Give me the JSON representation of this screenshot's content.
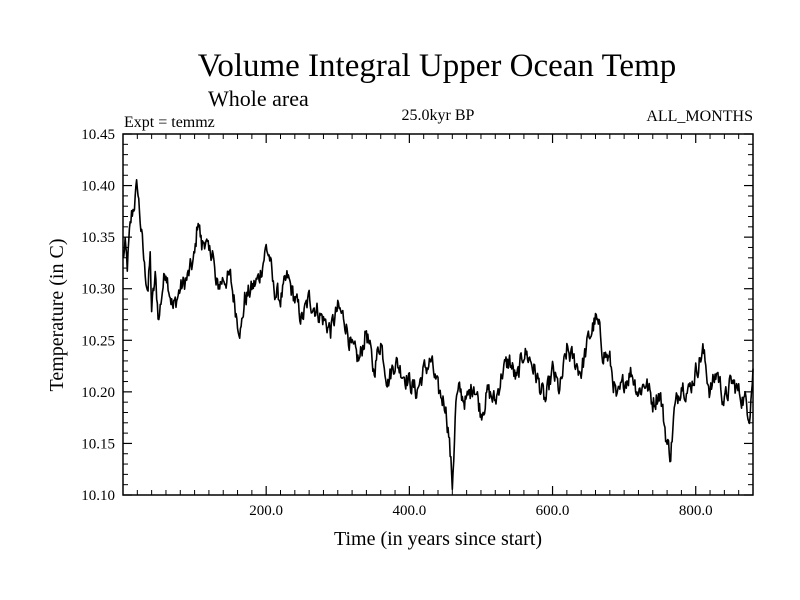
{
  "chart_data": {
    "type": "line",
    "title": "Volume Integral Upper Ocean Temp",
    "subtitle": "Whole area",
    "experiment_label": "Expt = temmz",
    "period_label": "25.0kyr BP",
    "months_label": "ALL_MONTHS",
    "xlabel": "Time (in years since start)",
    "ylabel": "Temperature (in C)",
    "xlim": [
      0,
      880
    ],
    "ylim": [
      10.1,
      10.45
    ],
    "x_ticks": [
      200,
      400,
      600,
      800
    ],
    "x_tick_labels": [
      "200.0",
      "400.0",
      "600.0",
      "800.0"
    ],
    "y_ticks": [
      10.1,
      10.15,
      10.2,
      10.25,
      10.3,
      10.35,
      10.4,
      10.45
    ],
    "y_tick_labels": [
      "10.10",
      "10.15",
      "10.20",
      "10.25",
      "10.30",
      "10.35",
      "10.40",
      "10.45"
    ],
    "grid": false,
    "series": [
      {
        "name": "temmz",
        "anchors": {
          "x": [
            0,
            3,
            6,
            9,
            12,
            15,
            20,
            25,
            30,
            35,
            38,
            40,
            45,
            50,
            55,
            60,
            70,
            80,
            90,
            100,
            105,
            110,
            115,
            120,
            125,
            130,
            140,
            150,
            160,
            165,
            170,
            180,
            190,
            200,
            205,
            210,
            220,
            230,
            240,
            250,
            260,
            270,
            280,
            290,
            300,
            310,
            320,
            330,
            340,
            350,
            360,
            370,
            380,
            390,
            400,
            410,
            420,
            430,
            440,
            450,
            455,
            460,
            462,
            465,
            470,
            480,
            490,
            500,
            510,
            520,
            530,
            540,
            550,
            560,
            570,
            580,
            590,
            600,
            610,
            620,
            630,
            640,
            650,
            660,
            665,
            670,
            680,
            690,
            700,
            710,
            720,
            730,
            740,
            750,
            760,
            765,
            770,
            780,
            790,
            800,
            810,
            820,
            830,
            840,
            850,
            860,
            870,
            875,
            880
          ],
          "y": [
            10.33,
            10.34,
            10.32,
            10.35,
            10.37,
            10.38,
            10.4,
            10.36,
            10.32,
            10.3,
            10.33,
            10.28,
            10.31,
            10.27,
            10.3,
            10.32,
            10.28,
            10.3,
            10.31,
            10.33,
            10.37,
            10.34,
            10.35,
            10.33,
            10.34,
            10.3,
            10.31,
            10.31,
            10.27,
            10.26,
            10.29,
            10.3,
            10.31,
            10.34,
            10.33,
            10.3,
            10.29,
            10.31,
            10.29,
            10.27,
            10.29,
            10.28,
            10.27,
            10.26,
            10.28,
            10.27,
            10.24,
            10.23,
            10.26,
            10.22,
            10.25,
            10.21,
            10.23,
            10.22,
            10.21,
            10.2,
            10.22,
            10.23,
            10.2,
            10.19,
            10.16,
            10.11,
            10.14,
            10.19,
            10.2,
            10.19,
            10.21,
            10.18,
            10.2,
            10.19,
            10.22,
            10.23,
            10.21,
            10.24,
            10.23,
            10.21,
            10.19,
            10.22,
            10.2,
            10.24,
            10.23,
            10.22,
            10.25,
            10.27,
            10.26,
            10.24,
            10.23,
            10.19,
            10.21,
            10.22,
            10.2,
            10.21,
            10.19,
            10.2,
            10.15,
            10.14,
            10.18,
            10.21,
            10.2,
            10.22,
            10.24,
            10.2,
            10.22,
            10.19,
            10.21,
            10.2,
            10.19,
            10.18,
            10.22
          ]
        }
      }
    ]
  }
}
